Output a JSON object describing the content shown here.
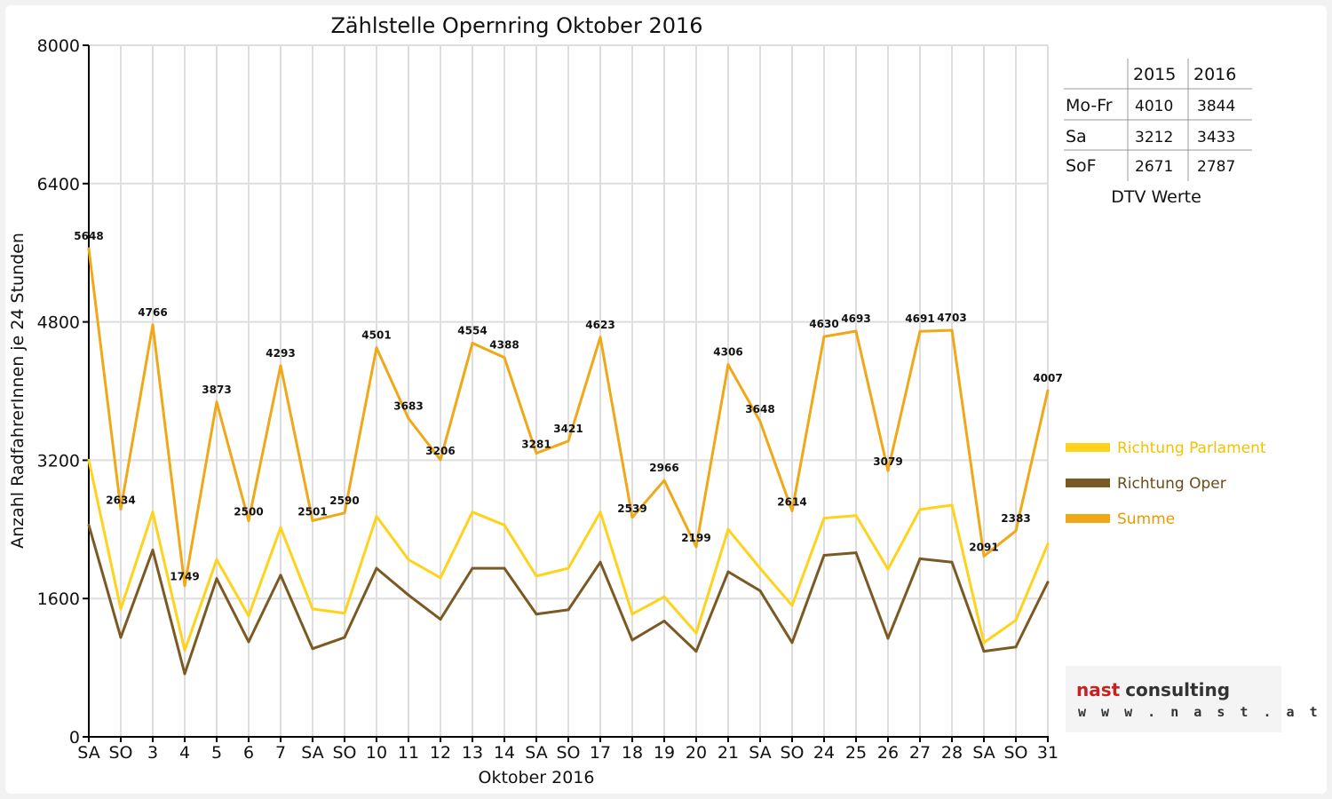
{
  "chart_data": {
    "type": "line",
    "title": "Zählstelle Opernring Oktober 2016",
    "xlabel": "Oktober 2016",
    "ylabel": "Anzahl RadfahrerInnen je 24 Stunden",
    "ylim": [
      0,
      8000
    ],
    "yticks": [
      "0",
      "1600",
      "3200",
      "4800",
      "6400",
      "8000"
    ],
    "grid": true,
    "legend_position": "right",
    "categories": [
      "SA",
      "SO",
      "3",
      "4",
      "5",
      "6",
      "7",
      "SA",
      "SO",
      "10",
      "11",
      "12",
      "13",
      "14",
      "SA",
      "SO",
      "17",
      "18",
      "19",
      "20",
      "21",
      "SA",
      "SO",
      "24",
      "25",
      "26",
      "27",
      "28",
      "SA",
      "SO",
      "31"
    ],
    "highlight_categories": [
      "SO",
      "26"
    ],
    "highlight_color": "#e00000",
    "series": [
      {
        "name": "Richtung Parlament",
        "color": "#ffd21c",
        "values": [
          3200,
          1480,
          2600,
          1000,
          2050,
          1400,
          2420,
          1480,
          1430,
          2550,
          2050,
          1840,
          2600,
          2450,
          1860,
          1950,
          2600,
          1420,
          1620,
          1200,
          2400,
          1950,
          1520,
          2530,
          2560,
          1940,
          2630,
          2680,
          1090,
          1350,
          2230
        ]
      },
      {
        "name": "Richtung Oper",
        "color": "#7a5a22",
        "values": [
          2450,
          1150,
          2160,
          730,
          1830,
          1100,
          1870,
          1020,
          1150,
          1950,
          1640,
          1360,
          1950,
          1950,
          1420,
          1470,
          2020,
          1120,
          1340,
          990,
          1910,
          1690,
          1090,
          2100,
          2130,
          1140,
          2060,
          2020,
          990,
          1040,
          1790
        ]
      },
      {
        "name": "Summe",
        "color": "#f0a818",
        "values": [
          5648,
          2634,
          4766,
          1749,
          3873,
          2500,
          4293,
          2501,
          2590,
          4501,
          3683,
          3206,
          4554,
          4388,
          3281,
          3421,
          4623,
          2539,
          2966,
          2199,
          4306,
          3648,
          2614,
          4630,
          4693,
          3079,
          4691,
          4703,
          2091,
          2383,
          4007
        ],
        "labels": [
          "5648",
          "2634",
          "4766",
          "1749",
          "3873",
          "2500",
          "4293",
          "2501",
          "2590",
          "4501",
          "3683",
          "3206",
          "4554",
          "4388",
          "3281",
          "3421",
          "4623",
          "2539",
          "2966",
          "2199",
          "4306",
          "3648",
          "2614",
          "4630",
          "4693",
          "3079",
          "4691",
          "4703",
          "2091",
          "2383",
          "4007"
        ]
      }
    ]
  },
  "dtv_table": {
    "caption": "DTV Werte",
    "headers": [
      "",
      "2015",
      "2016"
    ],
    "rows": [
      {
        "label": "Mo-Fr",
        "v2015": "4010",
        "v2016": "3844"
      },
      {
        "label": "Sa",
        "v2015": "3212",
        "v2016": "3433"
      },
      {
        "label": "SoF",
        "v2015": "2671",
        "v2016": "2787"
      }
    ]
  },
  "logo": {
    "word1": "nast",
    "word2": "consulting",
    "word1_color": "#cc1f1f",
    "word2_color": "#333333",
    "url": "w w w . n a s t . a t"
  }
}
